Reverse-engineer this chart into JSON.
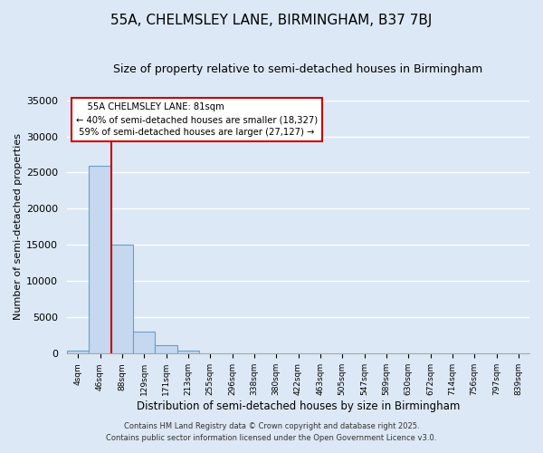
{
  "title": "55A, CHELMSLEY LANE, BIRMINGHAM, B37 7BJ",
  "subtitle": "Size of property relative to semi-detached houses in Birmingham",
  "xlabel": "Distribution of semi-detached houses by size in Birmingham",
  "ylabel": "Number of semi-detached properties",
  "background_color": "#dce8f5",
  "bar_color": "#c5d8ef",
  "bar_edge_color": "#6a9ec8",
  "grid_color": "#ffffff",
  "annotation_line_color": "#cc0000",
  "annotation_box_facecolor": "#ffffff",
  "annotation_box_edge": "#cc0000",
  "bin_labels": [
    "4sqm",
    "46sqm",
    "88sqm",
    "129sqm",
    "171sqm",
    "213sqm",
    "255sqm",
    "296sqm",
    "338sqm",
    "380sqm",
    "422sqm",
    "463sqm",
    "505sqm",
    "547sqm",
    "589sqm",
    "630sqm",
    "672sqm",
    "714sqm",
    "756sqm",
    "797sqm",
    "839sqm"
  ],
  "bar_heights": [
    400,
    26000,
    15000,
    3000,
    1200,
    400,
    100,
    0,
    0,
    0,
    0,
    0,
    0,
    0,
    0,
    0,
    0,
    0,
    0,
    0,
    0
  ],
  "ylim": [
    0,
    35000
  ],
  "yticks": [
    0,
    5000,
    10000,
    15000,
    20000,
    25000,
    30000,
    35000
  ],
  "property_line_x": 1.5,
  "annotation_title": "55A CHELMSLEY LANE: 81sqm",
  "annotation_line1": "← 40% of semi-detached houses are smaller (18,327)",
  "annotation_line2": "59% of semi-detached houses are larger (27,127) →",
  "footer_line1": "Contains HM Land Registry data © Crown copyright and database right 2025.",
  "footer_line2": "Contains public sector information licensed under the Open Government Licence v3.0."
}
